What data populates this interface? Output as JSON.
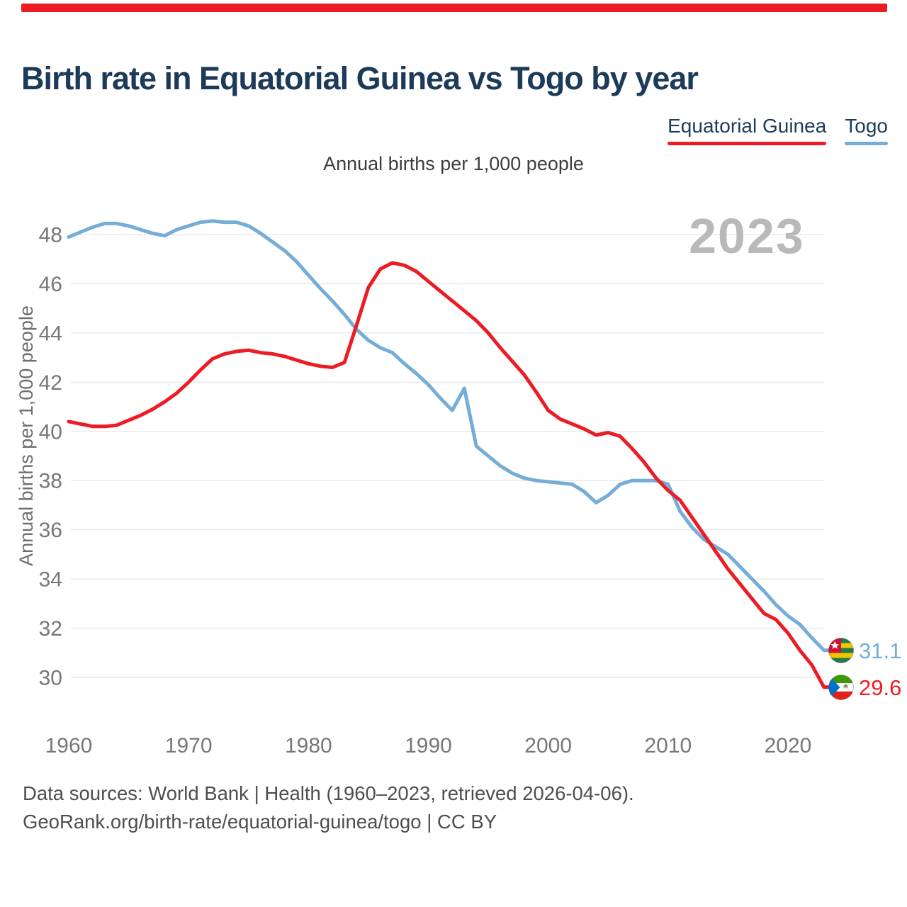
{
  "accent": {
    "top_bar_color": "#ec1c24"
  },
  "header": {
    "title": "Birth rate in Equatorial Guinea vs Togo by year"
  },
  "legend": [
    {
      "label": "Equatorial Guinea",
      "color": "#ec1c24"
    },
    {
      "label": "Togo",
      "color": "#74add8"
    }
  ],
  "subtitle": "Annual births per 1,000 people",
  "watermark": "2023",
  "chart_data": {
    "type": "line",
    "title": "Birth rate in Equatorial Guinea vs Togo by year",
    "ylabel": "Annual births per 1,000 people",
    "xlabel": "",
    "ylim": [
      29,
      49.5
    ],
    "yticks": [
      48,
      46,
      44,
      42,
      40,
      38,
      36,
      34,
      32,
      30
    ],
    "xticks": [
      1960,
      1970,
      1980,
      1990,
      2000,
      2010,
      2020
    ],
    "grid": "horizontal",
    "legend_position": "top-right",
    "x": [
      1960,
      1961,
      1962,
      1963,
      1964,
      1965,
      1966,
      1967,
      1968,
      1969,
      1970,
      1971,
      1972,
      1973,
      1974,
      1975,
      1976,
      1977,
      1978,
      1979,
      1980,
      1981,
      1982,
      1983,
      1984,
      1985,
      1986,
      1987,
      1988,
      1989,
      1990,
      1991,
      1992,
      1993,
      1994,
      1995,
      1996,
      1997,
      1998,
      1999,
      2000,
      2001,
      2002,
      2003,
      2004,
      2005,
      2006,
      2007,
      2008,
      2009,
      2010,
      2011,
      2012,
      2013,
      2014,
      2015,
      2016,
      2017,
      2018,
      2019,
      2020,
      2021,
      2022,
      2023
    ],
    "series": [
      {
        "name": "Equatorial Guinea",
        "color": "#ec1c24",
        "values": [
          40.4,
          40.3,
          40.2,
          40.2,
          40.25,
          40.45,
          40.65,
          40.9,
          41.2,
          41.55,
          42.0,
          42.5,
          42.95,
          43.15,
          43.25,
          43.3,
          43.2,
          43.15,
          43.05,
          42.9,
          42.75,
          42.65,
          42.6,
          42.8,
          44.3,
          45.85,
          46.6,
          46.85,
          46.75,
          46.5,
          46.1,
          45.7,
          45.3,
          44.9,
          44.5,
          44.0,
          43.4,
          42.85,
          42.3,
          41.6,
          40.85,
          40.5,
          40.3,
          40.1,
          39.85,
          39.95,
          39.8,
          39.3,
          38.75,
          38.1,
          37.6,
          37.2,
          36.5,
          35.8,
          35.1,
          34.4,
          33.8,
          33.2,
          32.6,
          32.35,
          31.8,
          31.1,
          30.5,
          29.6
        ]
      },
      {
        "name": "Togo",
        "color": "#74add8",
        "values": [
          47.9,
          48.1,
          48.3,
          48.45,
          48.45,
          48.35,
          48.2,
          48.05,
          47.95,
          48.2,
          48.35,
          48.5,
          48.55,
          48.5,
          48.5,
          48.35,
          48.05,
          47.7,
          47.35,
          46.9,
          46.35,
          45.8,
          45.3,
          44.75,
          44.15,
          43.7,
          43.4,
          43.2,
          42.75,
          42.35,
          41.9,
          41.35,
          40.85,
          41.75,
          39.4,
          39.0,
          38.6,
          38.3,
          38.1,
          38.0,
          37.95,
          37.9,
          37.85,
          37.55,
          37.1,
          37.4,
          37.85,
          38.0,
          38.0,
          38.0,
          37.85,
          36.75,
          36.1,
          35.6,
          35.3,
          35.0,
          34.5,
          34.0,
          33.5,
          32.95,
          32.5,
          32.15,
          31.6,
          31.1
        ]
      }
    ],
    "end_labels": [
      {
        "series": "Togo",
        "value": "31.1"
      },
      {
        "series": "Equatorial Guinea",
        "value": "29.6"
      }
    ]
  },
  "footer": {
    "line1": "Data sources: World Bank | Health (1960–2023, retrieved 2026-04-06).",
    "line2": "GeoRank.org/birth-rate/equatorial-guinea/togo | CC BY"
  }
}
